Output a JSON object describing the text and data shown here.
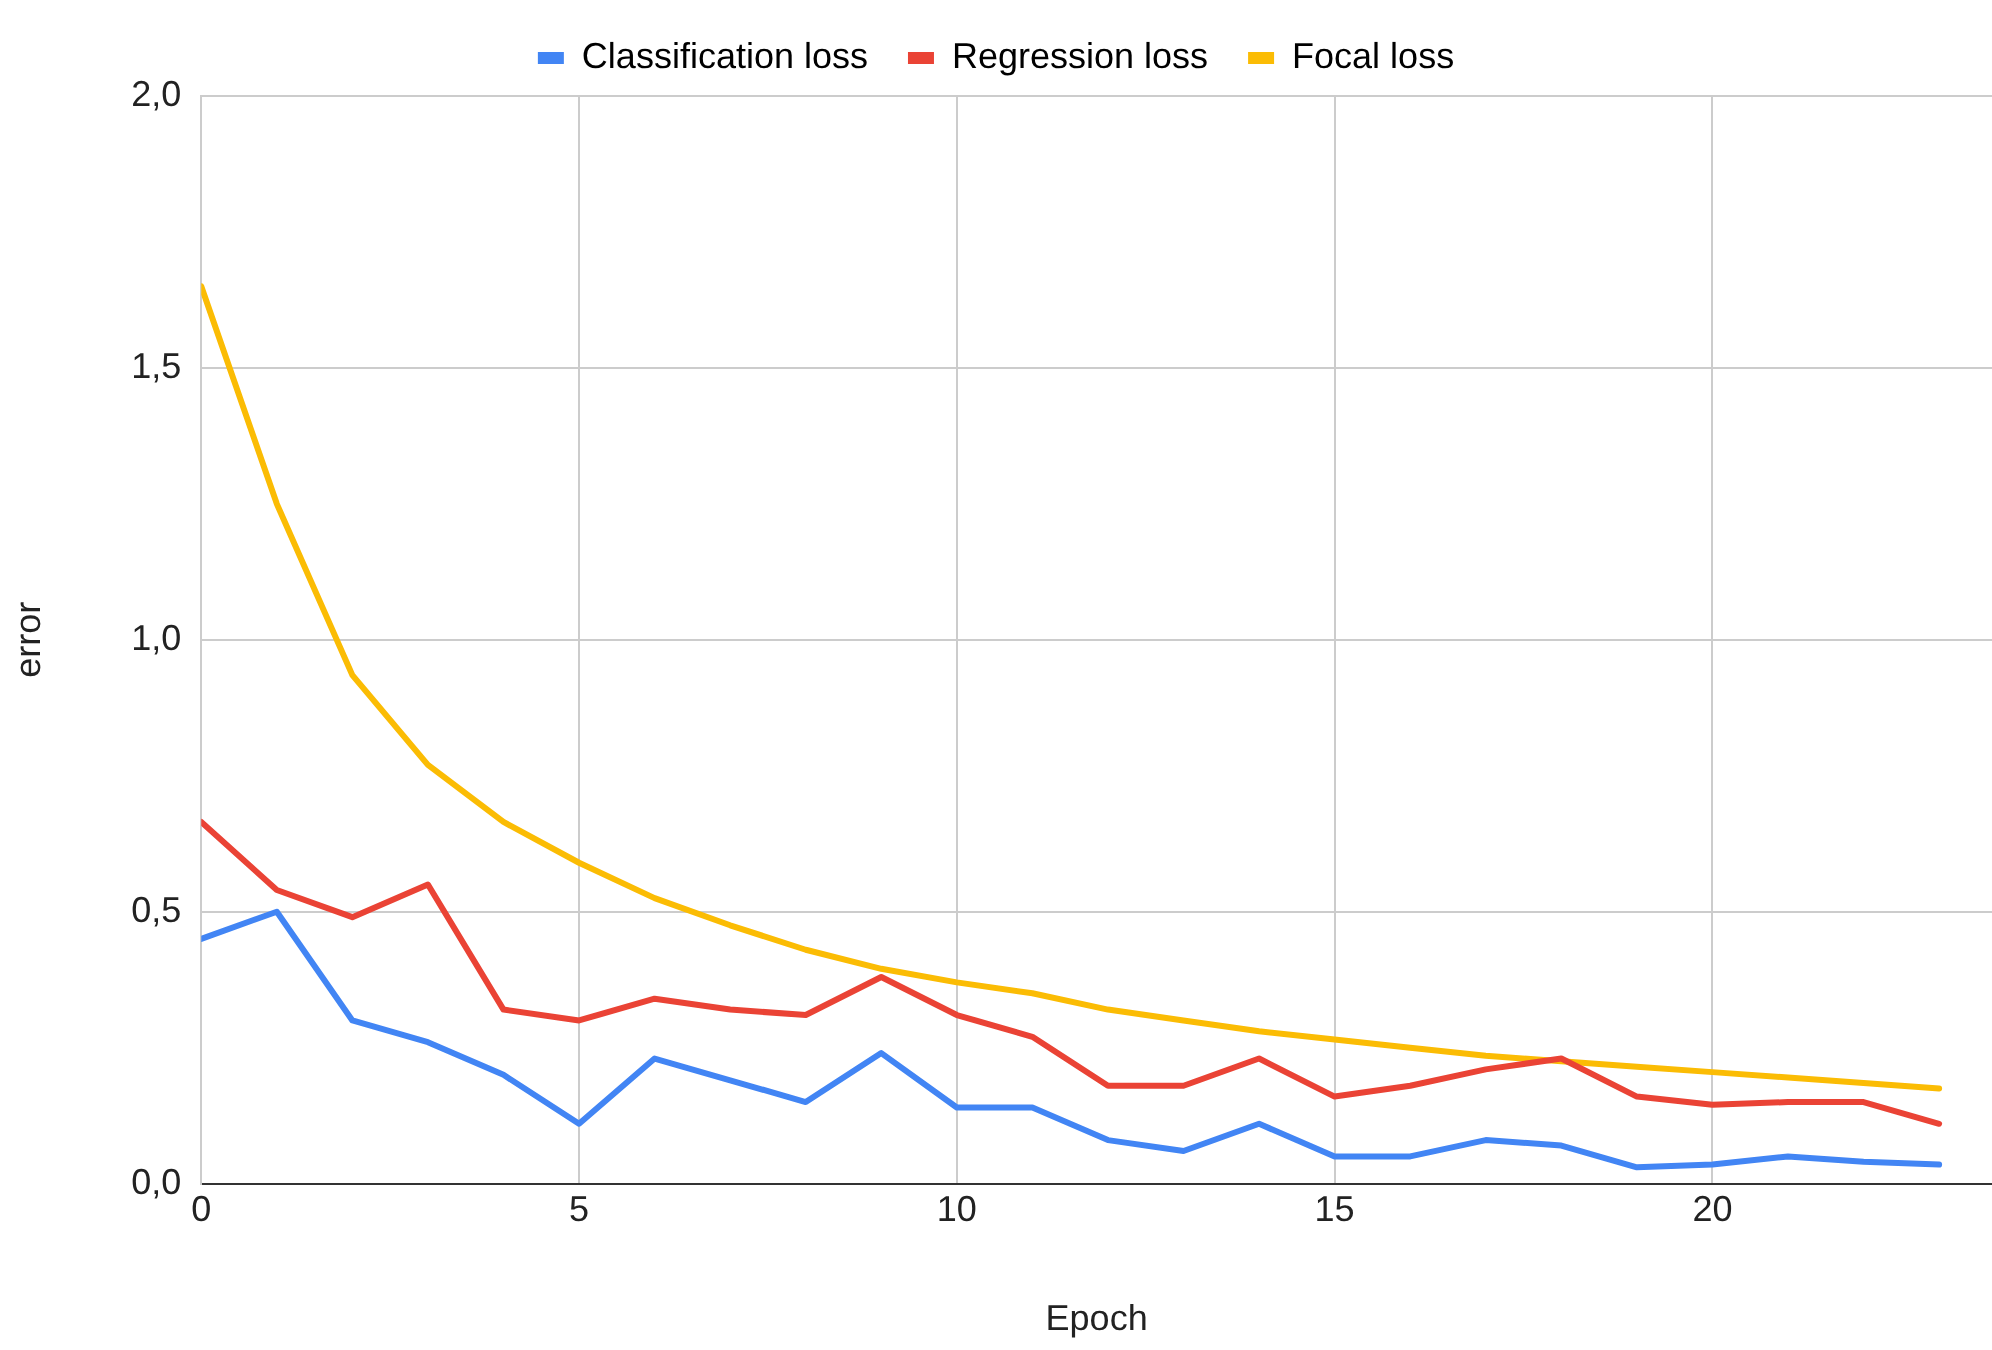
{
  "chart_data": {
    "type": "line",
    "xlabel": "Epoch",
    "ylabel": "error",
    "x": [
      0,
      1,
      2,
      3,
      4,
      5,
      6,
      7,
      8,
      9,
      10,
      11,
      12,
      13,
      14,
      15,
      16,
      17,
      18,
      19,
      20,
      21,
      22,
      23
    ],
    "series": [
      {
        "name": "Classification loss",
        "color": "#4285f4",
        "values": [
          0.45,
          0.5,
          0.3,
          0.26,
          0.2,
          0.11,
          0.23,
          0.19,
          0.15,
          0.24,
          0.14,
          0.14,
          0.08,
          0.06,
          0.11,
          0.05,
          0.05,
          0.08,
          0.07,
          0.03,
          0.035,
          0.05,
          0.04,
          0.035
        ]
      },
      {
        "name": "Regression loss",
        "color": "#ea4335",
        "values": [
          0.665,
          0.54,
          0.49,
          0.55,
          0.32,
          0.3,
          0.34,
          0.32,
          0.31,
          0.38,
          0.31,
          0.27,
          0.18,
          0.18,
          0.23,
          0.16,
          0.18,
          0.21,
          0.23,
          0.16,
          0.145,
          0.15,
          0.15,
          0.11
        ]
      },
      {
        "name": "Focal loss",
        "color": "#fbbc04",
        "values": [
          1.65,
          1.25,
          0.935,
          0.77,
          0.665,
          0.59,
          0.525,
          0.475,
          0.43,
          0.395,
          0.37,
          0.35,
          0.32,
          0.3,
          0.28,
          0.265,
          0.25,
          0.235,
          0.225,
          0.215,
          0.205,
          0.195,
          0.185,
          0.175
        ]
      }
    ],
    "xlim": [
      0,
      23.7
    ],
    "xticks": [
      0,
      5,
      10,
      15,
      20
    ],
    "ylim": [
      0,
      2
    ],
    "yticks": [
      {
        "value": 0,
        "label": "0,0"
      },
      {
        "value": 0.5,
        "label": "0,5"
      },
      {
        "value": 1,
        "label": "1,0"
      },
      {
        "value": 1.5,
        "label": "1,5"
      },
      {
        "value": 2,
        "label": "2,0"
      }
    ],
    "grid": true,
    "legend": "top",
    "marker": "none",
    "line_style": "solid"
  }
}
